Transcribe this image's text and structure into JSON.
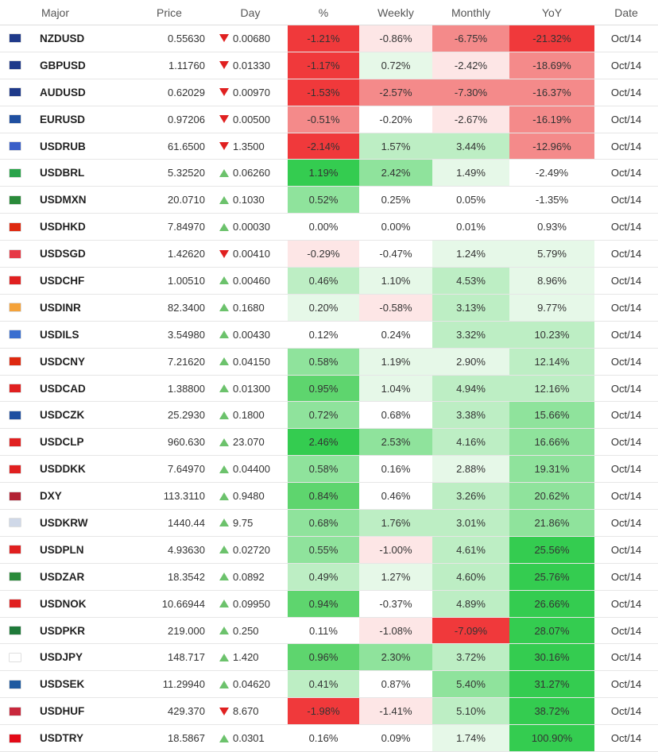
{
  "headers": {
    "major": "Major",
    "price": "Price",
    "day": "Day",
    "pct": "%",
    "weekly": "Weekly",
    "monthly": "Monthly",
    "yoy": "YoY",
    "date": "Date"
  },
  "colors": {
    "strong_red": "#f0393b",
    "med_red": "#f48a8a",
    "light_red": "#f8c6c6",
    "pale_red": "#fde6e6",
    "pale_green": "#e6f8e8",
    "light_green": "#bdeec4",
    "med_green": "#8fe39c",
    "strong_green": "#5ed56e",
    "bright_green": "#34cc50",
    "neutral": "#ffffff",
    "arrow_up": "#6cc26c",
    "arrow_down": "#e02020"
  },
  "rows": [
    {
      "flag": "nz-flag-icon",
      "flag_color": "#1f3a8a",
      "sym": "NZDUSD",
      "price": "0.55630",
      "dir": "down",
      "day": "0.00680",
      "pct": "-1.21%",
      "pct_bg": "#f0393b",
      "wk": "-0.86%",
      "wk_bg": "#fde6e6",
      "mo": "-6.75%",
      "mo_bg": "#f48a8a",
      "yoy": "-21.32%",
      "yoy_bg": "#f0393b",
      "date": "Oct/14"
    },
    {
      "flag": "gb-flag-icon",
      "flag_color": "#1f3a8a",
      "sym": "GBPUSD",
      "price": "1.11760",
      "dir": "down",
      "day": "0.01330",
      "pct": "-1.17%",
      "pct_bg": "#f0393b",
      "wk": "0.72%",
      "wk_bg": "#e6f8e8",
      "mo": "-2.42%",
      "mo_bg": "#fde6e6",
      "yoy": "-18.69%",
      "yoy_bg": "#f48a8a",
      "date": "Oct/14"
    },
    {
      "flag": "au-flag-icon",
      "flag_color": "#1f3a8a",
      "sym": "AUDUSD",
      "price": "0.62029",
      "dir": "down",
      "day": "0.00970",
      "pct": "-1.53%",
      "pct_bg": "#f0393b",
      "wk": "-2.57%",
      "wk_bg": "#f48a8a",
      "mo": "-7.30%",
      "mo_bg": "#f48a8a",
      "yoy": "-16.37%",
      "yoy_bg": "#f48a8a",
      "date": "Oct/14"
    },
    {
      "flag": "eu-flag-icon",
      "flag_color": "#1f4fa0",
      "sym": "EURUSD",
      "price": "0.97206",
      "dir": "down",
      "day": "0.00500",
      "pct": "-0.51%",
      "pct_bg": "#f48a8a",
      "wk": "-0.20%",
      "wk_bg": "#ffffff",
      "mo": "-2.67%",
      "mo_bg": "#fde6e6",
      "yoy": "-16.19%",
      "yoy_bg": "#f48a8a",
      "date": "Oct/14"
    },
    {
      "flag": "ru-flag-icon",
      "flag_color": "#3a5fc8",
      "sym": "USDRUB",
      "price": "61.6500",
      "dir": "down",
      "day": "1.3500",
      "pct": "-2.14%",
      "pct_bg": "#f0393b",
      "wk": "1.57%",
      "wk_bg": "#bdeec4",
      "mo": "3.44%",
      "mo_bg": "#bdeec4",
      "yoy": "-12.96%",
      "yoy_bg": "#f48a8a",
      "date": "Oct/14"
    },
    {
      "flag": "br-flag-icon",
      "flag_color": "#2aa34a",
      "sym": "USDBRL",
      "price": "5.32520",
      "dir": "up",
      "day": "0.06260",
      "pct": "1.19%",
      "pct_bg": "#34cc50",
      "wk": "2.42%",
      "wk_bg": "#8fe39c",
      "mo": "1.49%",
      "mo_bg": "#e6f8e8",
      "yoy": "-2.49%",
      "yoy_bg": "#ffffff",
      "date": "Oct/14"
    },
    {
      "flag": "mx-flag-icon",
      "flag_color": "#2a8a3a",
      "sym": "USDMXN",
      "price": "20.0710",
      "dir": "up",
      "day": "0.1030",
      "pct": "0.52%",
      "pct_bg": "#8fe39c",
      "wk": "0.25%",
      "wk_bg": "#ffffff",
      "mo": "0.05%",
      "mo_bg": "#ffffff",
      "yoy": "-1.35%",
      "yoy_bg": "#ffffff",
      "date": "Oct/14"
    },
    {
      "flag": "hk-flag-icon",
      "flag_color": "#de2910",
      "sym": "USDHKD",
      "price": "7.84970",
      "dir": "up",
      "day": "0.00030",
      "pct": "0.00%",
      "pct_bg": "#ffffff",
      "wk": "0.00%",
      "wk_bg": "#ffffff",
      "mo": "0.01%",
      "mo_bg": "#ffffff",
      "yoy": "0.93%",
      "yoy_bg": "#ffffff",
      "date": "Oct/14"
    },
    {
      "flag": "sg-flag-icon",
      "flag_color": "#e63946",
      "sym": "USDSGD",
      "price": "1.42620",
      "dir": "down",
      "day": "0.00410",
      "pct": "-0.29%",
      "pct_bg": "#fde6e6",
      "wk": "-0.47%",
      "wk_bg": "#ffffff",
      "mo": "1.24%",
      "mo_bg": "#e6f8e8",
      "yoy": "5.79%",
      "yoy_bg": "#e6f8e8",
      "date": "Oct/14"
    },
    {
      "flag": "ch-flag-icon",
      "flag_color": "#e02020",
      "sym": "USDCHF",
      "price": "1.00510",
      "dir": "up",
      "day": "0.00460",
      "pct": "0.46%",
      "pct_bg": "#bdeec4",
      "wk": "1.10%",
      "wk_bg": "#e6f8e8",
      "mo": "4.53%",
      "mo_bg": "#bdeec4",
      "yoy": "8.96%",
      "yoy_bg": "#e6f8e8",
      "date": "Oct/14"
    },
    {
      "flag": "in-flag-icon",
      "flag_color": "#f4a23a",
      "sym": "USDINR",
      "price": "82.3400",
      "dir": "up",
      "day": "0.1680",
      "pct": "0.20%",
      "pct_bg": "#e6f8e8",
      "wk": "-0.58%",
      "wk_bg": "#fde6e6",
      "mo": "3.13%",
      "mo_bg": "#bdeec4",
      "yoy": "9.77%",
      "yoy_bg": "#e6f8e8",
      "date": "Oct/14"
    },
    {
      "flag": "il-flag-icon",
      "flag_color": "#3a6fd0",
      "sym": "USDILS",
      "price": "3.54980",
      "dir": "up",
      "day": "0.00430",
      "pct": "0.12%",
      "pct_bg": "#ffffff",
      "wk": "0.24%",
      "wk_bg": "#ffffff",
      "mo": "3.32%",
      "mo_bg": "#bdeec4",
      "yoy": "10.23%",
      "yoy_bg": "#bdeec4",
      "date": "Oct/14"
    },
    {
      "flag": "cn-flag-icon",
      "flag_color": "#de2910",
      "sym": "USDCNY",
      "price": "7.21620",
      "dir": "up",
      "day": "0.04150",
      "pct": "0.58%",
      "pct_bg": "#8fe39c",
      "wk": "1.19%",
      "wk_bg": "#e6f8e8",
      "mo": "2.90%",
      "mo_bg": "#e6f8e8",
      "yoy": "12.14%",
      "yoy_bg": "#bdeec4",
      "date": "Oct/14"
    },
    {
      "flag": "ca-flag-icon",
      "flag_color": "#e02020",
      "sym": "USDCAD",
      "price": "1.38800",
      "dir": "up",
      "day": "0.01300",
      "pct": "0.95%",
      "pct_bg": "#5ed56e",
      "wk": "1.04%",
      "wk_bg": "#e6f8e8",
      "mo": "4.94%",
      "mo_bg": "#bdeec4",
      "yoy": "12.16%",
      "yoy_bg": "#bdeec4",
      "date": "Oct/14"
    },
    {
      "flag": "cz-flag-icon",
      "flag_color": "#1f4fa0",
      "sym": "USDCZK",
      "price": "25.2930",
      "dir": "up",
      "day": "0.1800",
      "pct": "0.72%",
      "pct_bg": "#8fe39c",
      "wk": "0.68%",
      "wk_bg": "#ffffff",
      "mo": "3.38%",
      "mo_bg": "#bdeec4",
      "yoy": "15.66%",
      "yoy_bg": "#8fe39c",
      "date": "Oct/14"
    },
    {
      "flag": "cl-flag-icon",
      "flag_color": "#e02020",
      "sym": "USDCLP",
      "price": "960.630",
      "dir": "up",
      "day": "23.070",
      "pct": "2.46%",
      "pct_bg": "#34cc50",
      "wk": "2.53%",
      "wk_bg": "#8fe39c",
      "mo": "4.16%",
      "mo_bg": "#bdeec4",
      "yoy": "16.66%",
      "yoy_bg": "#8fe39c",
      "date": "Oct/14"
    },
    {
      "flag": "dk-flag-icon",
      "flag_color": "#e02020",
      "sym": "USDDKK",
      "price": "7.64970",
      "dir": "up",
      "day": "0.04400",
      "pct": "0.58%",
      "pct_bg": "#8fe39c",
      "wk": "0.16%",
      "wk_bg": "#ffffff",
      "mo": "2.88%",
      "mo_bg": "#e6f8e8",
      "yoy": "19.31%",
      "yoy_bg": "#8fe39c",
      "date": "Oct/14"
    },
    {
      "flag": "us-flag-icon",
      "flag_color": "#b22234",
      "sym": "DXY",
      "price": "113.3110",
      "dir": "up",
      "day": "0.9480",
      "pct": "0.84%",
      "pct_bg": "#5ed56e",
      "wk": "0.46%",
      "wk_bg": "#ffffff",
      "mo": "3.26%",
      "mo_bg": "#bdeec4",
      "yoy": "20.62%",
      "yoy_bg": "#8fe39c",
      "date": "Oct/14"
    },
    {
      "flag": "kr-flag-icon",
      "flag_color": "#cfd8e8",
      "sym": "USDKRW",
      "price": "1440.44",
      "dir": "up",
      "day": "9.75",
      "pct": "0.68%",
      "pct_bg": "#8fe39c",
      "wk": "1.76%",
      "wk_bg": "#bdeec4",
      "mo": "3.01%",
      "mo_bg": "#bdeec4",
      "yoy": "21.86%",
      "yoy_bg": "#8fe39c",
      "date": "Oct/14"
    },
    {
      "flag": "pl-flag-icon",
      "flag_color": "#e02020",
      "sym": "USDPLN",
      "price": "4.93630",
      "dir": "up",
      "day": "0.02720",
      "pct": "0.55%",
      "pct_bg": "#8fe39c",
      "wk": "-1.00%",
      "wk_bg": "#fde6e6",
      "mo": "4.61%",
      "mo_bg": "#bdeec4",
      "yoy": "25.56%",
      "yoy_bg": "#34cc50",
      "date": "Oct/14"
    },
    {
      "flag": "za-flag-icon",
      "flag_color": "#2a8a3a",
      "sym": "USDZAR",
      "price": "18.3542",
      "dir": "up",
      "day": "0.0892",
      "pct": "0.49%",
      "pct_bg": "#bdeec4",
      "wk": "1.27%",
      "wk_bg": "#e6f8e8",
      "mo": "4.60%",
      "mo_bg": "#bdeec4",
      "yoy": "25.76%",
      "yoy_bg": "#34cc50",
      "date": "Oct/14"
    },
    {
      "flag": "no-flag-icon",
      "flag_color": "#e02020",
      "sym": "USDNOK",
      "price": "10.66944",
      "dir": "up",
      "day": "0.09950",
      "pct": "0.94%",
      "pct_bg": "#5ed56e",
      "wk": "-0.37%",
      "wk_bg": "#ffffff",
      "mo": "4.89%",
      "mo_bg": "#bdeec4",
      "yoy": "26.66%",
      "yoy_bg": "#34cc50",
      "date": "Oct/14"
    },
    {
      "flag": "pk-flag-icon",
      "flag_color": "#1f7a3a",
      "sym": "USDPKR",
      "price": "219.000",
      "dir": "up",
      "day": "0.250",
      "pct": "0.11%",
      "pct_bg": "#ffffff",
      "wk": "-1.08%",
      "wk_bg": "#fde6e6",
      "mo": "-7.09%",
      "mo_bg": "#f0393b",
      "yoy": "28.07%",
      "yoy_bg": "#34cc50",
      "date": "Oct/14"
    },
    {
      "flag": "jp-flag-icon",
      "flag_color": "#ffffff",
      "sym": "USDJPY",
      "price": "148.717",
      "dir": "up",
      "day": "1.420",
      "pct": "0.96%",
      "pct_bg": "#5ed56e",
      "wk": "2.30%",
      "wk_bg": "#8fe39c",
      "mo": "3.72%",
      "mo_bg": "#bdeec4",
      "yoy": "30.16%",
      "yoy_bg": "#34cc50",
      "date": "Oct/14"
    },
    {
      "flag": "se-flag-icon",
      "flag_color": "#1f5aa0",
      "sym": "USDSEK",
      "price": "11.29940",
      "dir": "up",
      "day": "0.04620",
      "pct": "0.41%",
      "pct_bg": "#bdeec4",
      "wk": "0.87%",
      "wk_bg": "#ffffff",
      "mo": "5.40%",
      "mo_bg": "#8fe39c",
      "yoy": "31.27%",
      "yoy_bg": "#34cc50",
      "date": "Oct/14"
    },
    {
      "flag": "hu-flag-icon",
      "flag_color": "#c8283c",
      "sym": "USDHUF",
      "price": "429.370",
      "dir": "down",
      "day": "8.670",
      "pct": "-1.98%",
      "pct_bg": "#f0393b",
      "wk": "-1.41%",
      "wk_bg": "#fde6e6",
      "mo": "5.10%",
      "mo_bg": "#bdeec4",
      "yoy": "38.72%",
      "yoy_bg": "#34cc50",
      "date": "Oct/14"
    },
    {
      "flag": "tr-flag-icon",
      "flag_color": "#e30a17",
      "sym": "USDTRY",
      "price": "18.5867",
      "dir": "up",
      "day": "0.0301",
      "pct": "0.16%",
      "pct_bg": "#ffffff",
      "wk": "0.09%",
      "wk_bg": "#ffffff",
      "mo": "1.74%",
      "mo_bg": "#e6f8e8",
      "yoy": "100.90%",
      "yoy_bg": "#34cc50",
      "date": "Oct/14"
    }
  ]
}
